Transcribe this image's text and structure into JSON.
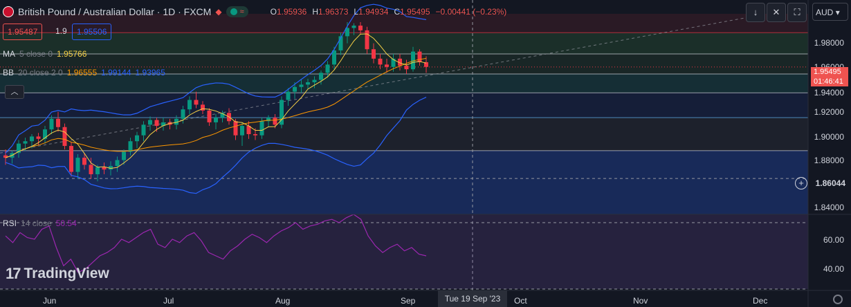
{
  "header": {
    "title": "British Pound / Australian Dollar · 1D · FXCM",
    "ohlc": [
      {
        "label": "O",
        "value": "1.95936"
      },
      {
        "label": "H",
        "value": "1.96373"
      },
      {
        "label": "L",
        "value": "1.94934"
      },
      {
        "label": "C",
        "value": "1.95495"
      }
    ],
    "change": "−0.00441 (−0.23%)",
    "sell_price": "1.95487",
    "spread": "1.9",
    "buy_price": "1.95506"
  },
  "indicators": {
    "ma": {
      "name": "MA",
      "params": "5 close 0",
      "value": "1.95766",
      "color": "#f7d046"
    },
    "bb": {
      "name": "BB",
      "params": "20 close 2 0",
      "basis": "1.96555",
      "upper": "1.99144",
      "lower": "1.93965",
      "basis_color": "#ff9800",
      "band_color": "#2962ff"
    },
    "rsi": {
      "name": "RSI",
      "params": "14 close",
      "value": "50.54",
      "color": "#9c27b0"
    }
  },
  "price_axis": {
    "currency": "AUD",
    "ticks": [
      "1.98000",
      "1.96000",
      "1.94000",
      "1.92000",
      "1.90000",
      "1.88000",
      "1.86044",
      "1.84000"
    ],
    "last_price": "1.95495",
    "countdown": "01:46:41"
  },
  "rsi_axis": {
    "ticks": [
      "60.00",
      "40.00"
    ]
  },
  "time_axis": {
    "labels": [
      "Jun",
      "Jul",
      "Aug",
      "Sep",
      "Oct",
      "Nov",
      "Dec"
    ],
    "crosshair": "Tue 19 Sep '23"
  },
  "brand": "TradingView",
  "colors": {
    "up": "#089981",
    "down": "#f23645",
    "background": "#131722"
  },
  "chart_data": {
    "type": "candlestick",
    "title": "British Pound / Australian Dollar · 1D · FXCM",
    "ylim": [
      1.83,
      2.0
    ],
    "candles": [
      [
        1.88,
        1.885,
        1.872,
        1.878
      ],
      [
        1.878,
        1.884,
        1.873,
        1.882
      ],
      [
        1.882,
        1.893,
        1.878,
        1.89
      ],
      [
        1.89,
        1.895,
        1.884,
        1.892
      ],
      [
        1.892,
        1.898,
        1.886,
        1.896
      ],
      [
        1.896,
        1.899,
        1.889,
        1.894
      ],
      [
        1.894,
        1.905,
        1.89,
        1.902
      ],
      [
        1.902,
        1.914,
        1.898,
        1.911
      ],
      [
        1.911,
        1.917,
        1.9,
        1.904
      ],
      [
        1.904,
        1.907,
        1.885,
        1.888
      ],
      [
        1.888,
        1.891,
        1.862,
        1.866
      ],
      [
        1.866,
        1.881,
        1.86,
        1.878
      ],
      [
        1.878,
        1.882,
        1.868,
        1.872
      ],
      [
        1.872,
        1.878,
        1.86,
        1.864
      ],
      [
        1.864,
        1.872,
        1.858,
        1.87
      ],
      [
        1.87,
        1.874,
        1.864,
        1.868
      ],
      [
        1.868,
        1.875,
        1.863,
        1.871
      ],
      [
        1.871,
        1.879,
        1.866,
        1.876
      ],
      [
        1.876,
        1.885,
        1.872,
        1.883
      ],
      [
        1.883,
        1.895,
        1.88,
        1.892
      ],
      [
        1.892,
        1.9,
        1.886,
        1.897
      ],
      [
        1.897,
        1.909,
        1.892,
        1.906
      ],
      [
        1.906,
        1.913,
        1.901,
        1.91
      ],
      [
        1.91,
        1.912,
        1.9,
        1.905
      ],
      [
        1.905,
        1.912,
        1.901,
        1.908
      ],
      [
        1.908,
        1.911,
        1.902,
        1.906
      ],
      [
        1.906,
        1.914,
        1.902,
        1.911
      ],
      [
        1.911,
        1.922,
        1.907,
        1.919
      ],
      [
        1.919,
        1.93,
        1.915,
        1.927
      ],
      [
        1.927,
        1.934,
        1.92,
        1.923
      ],
      [
        1.923,
        1.926,
        1.915,
        1.918
      ],
      [
        1.918,
        1.92,
        1.905,
        1.908
      ],
      [
        1.908,
        1.915,
        1.902,
        1.912
      ],
      [
        1.912,
        1.918,
        1.908,
        1.916
      ],
      [
        1.916,
        1.92,
        1.906,
        1.909
      ],
      [
        1.909,
        1.911,
        1.893,
        1.897
      ],
      [
        1.897,
        1.908,
        1.888,
        1.905
      ],
      [
        1.905,
        1.909,
        1.894,
        1.898
      ],
      [
        1.898,
        1.903,
        1.893,
        1.897
      ],
      [
        1.897,
        1.912,
        1.894,
        1.909
      ],
      [
        1.909,
        1.914,
        1.904,
        1.912
      ],
      [
        1.912,
        1.915,
        1.903,
        1.906
      ],
      [
        1.906,
        1.93,
        1.903,
        1.927
      ],
      [
        1.927,
        1.937,
        1.922,
        1.934
      ],
      [
        1.934,
        1.942,
        1.928,
        1.938
      ],
      [
        1.938,
        1.944,
        1.933,
        1.94
      ],
      [
        1.94,
        1.945,
        1.936,
        1.942
      ],
      [
        1.942,
        1.947,
        1.937,
        1.944
      ],
      [
        1.944,
        1.952,
        1.94,
        1.95
      ],
      [
        1.95,
        1.96,
        1.946,
        1.957
      ],
      [
        1.957,
        1.972,
        1.953,
        1.969
      ],
      [
        1.969,
        1.984,
        1.965,
        1.981
      ],
      [
        1.981,
        1.993,
        1.975,
        1.988
      ],
      [
        1.988,
        1.992,
        1.982,
        1.99
      ],
      [
        1.99,
        1.993,
        1.983,
        1.986
      ],
      [
        1.986,
        1.989,
        1.966,
        1.97
      ],
      [
        1.97,
        1.975,
        1.958,
        1.962
      ],
      [
        1.962,
        1.966,
        1.953,
        1.957
      ],
      [
        1.957,
        1.962,
        1.95,
        1.955
      ],
      [
        1.955,
        1.966,
        1.951,
        1.962
      ],
      [
        1.962,
        1.966,
        1.952,
        1.956
      ],
      [
        1.956,
        1.961,
        1.949,
        1.953
      ],
      [
        1.953,
        1.972,
        1.951,
        1.968
      ],
      [
        1.968,
        1.97,
        1.956,
        1.959
      ],
      [
        1.959,
        1.964,
        1.95,
        1.955
      ]
    ],
    "rsi_ylim": [
      30,
      75
    ],
    "rsi_values": [
      62,
      58,
      64,
      61,
      60,
      66,
      68,
      55,
      44,
      48,
      40,
      42,
      46,
      50,
      52,
      55,
      60,
      58,
      61,
      64,
      66,
      57,
      55,
      60,
      58,
      62,
      64,
      59,
      52,
      50,
      48,
      53,
      56,
      60,
      63,
      61,
      58,
      62,
      65,
      67,
      70,
      66,
      68,
      69,
      71,
      72,
      70,
      73,
      75,
      72,
      62,
      56,
      52,
      55,
      57,
      53,
      55,
      51,
      50
    ]
  }
}
